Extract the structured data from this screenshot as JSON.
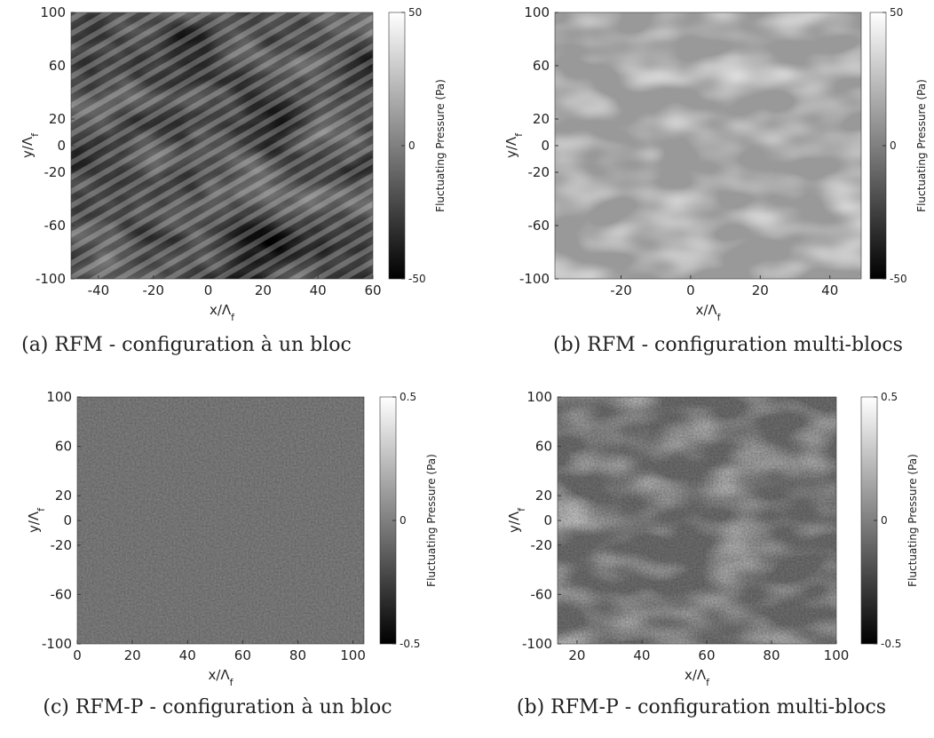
{
  "chart_data": [
    {
      "type": "heatmap",
      "caption": "(a) RFM - configuration à un bloc",
      "xlabel": "x/Λf",
      "ylabel": "y/Λf",
      "xlim": [
        -50,
        60
      ],
      "xticks": [
        -40,
        -20,
        0,
        20,
        40,
        60
      ],
      "ylim": [
        -100,
        100
      ],
      "yticks": [
        -100,
        -60,
        -20,
        0,
        20,
        60,
        100
      ],
      "colorbar_label": "Fluctuating Pressure (Pa)",
      "clim": [
        -50,
        50
      ],
      "cticks": [
        -50,
        0,
        50
      ]
    },
    {
      "type": "heatmap",
      "caption": "(b) RFM - configuration multi-blocs",
      "xlabel": "x/Λf",
      "ylabel": "y/Λf",
      "xlim": [
        -39,
        49
      ],
      "xticks": [
        -20,
        0,
        20,
        40
      ],
      "ylim": [
        -100,
        100
      ],
      "yticks": [
        -100,
        -60,
        -20,
        0,
        20,
        60,
        100
      ],
      "colorbar_label": "Fluctuating Pressure (Pa)",
      "clim": [
        -50,
        50
      ],
      "cticks": [
        -50,
        0,
        50
      ]
    },
    {
      "type": "heatmap",
      "caption": "(c) RFM-P - configuration à un bloc",
      "xlabel": "x/Λf",
      "ylabel": "y/Λf",
      "xlim": [
        0,
        104
      ],
      "xticks": [
        0,
        20,
        40,
        60,
        80,
        100
      ],
      "ylim": [
        -100,
        100
      ],
      "yticks": [
        -100,
        -60,
        -20,
        0,
        20,
        60,
        100
      ],
      "colorbar_label": "Fluctuating Pressure (Pa)",
      "clim": [
        -0.5,
        0.5
      ],
      "cticks": [
        -0.5,
        0,
        0.5
      ]
    },
    {
      "type": "heatmap",
      "caption": "(b) RFM-P - configuration multi-blocs",
      "xlabel": "x/Λf",
      "ylabel": "y/Λf",
      "xlim": [
        14,
        100
      ],
      "xticks": [
        20,
        40,
        60,
        80,
        100
      ],
      "ylim": [
        -100,
        100
      ],
      "yticks": [
        -100,
        -60,
        -20,
        0,
        20,
        60,
        100
      ],
      "colorbar_label": "Fluctuating Pressure (Pa)",
      "clim": [
        -0.5,
        0.5
      ],
      "cticks": [
        -0.5,
        0,
        0.5
      ]
    }
  ]
}
